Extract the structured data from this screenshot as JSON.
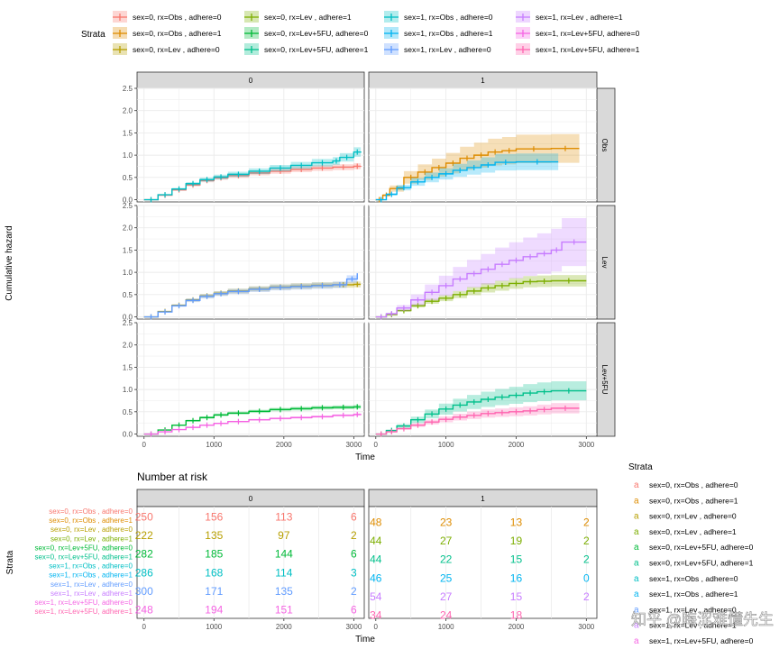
{
  "strata_labels": [
    "sex=0, rx=Obs    , adhere=0",
    "sex=0, rx=Obs    , adhere=1",
    "sex=0, rx=Lev    , adhere=0",
    "sex=0, rx=Lev    , adhere=1",
    "sex=0, rx=Lev+5FU, adhere=0",
    "sex=0, rx=Lev+5FU, adhere=1",
    "sex=1, rx=Obs    , adhere=0",
    "sex=1, rx=Obs    , adhere=1",
    "sex=1, rx=Lev    , adhere=0",
    "sex=1, rx=Lev    , adhere=1",
    "sex=1, rx=Lev+5FU, adhere=0",
    "sex=1, rx=Lev+5FU, adhere=1"
  ],
  "colors": [
    "#F8766D",
    "#DE8C00",
    "#B79F00",
    "#7CAE00",
    "#00BA38",
    "#00C08B",
    "#00BFC4",
    "#00B4F0",
    "#619CFF",
    "#C77CFF",
    "#F564E3",
    "#FF64B0"
  ],
  "legend": {
    "title": "Strata",
    "glyph": "a"
  },
  "facet_cols": [
    "0",
    "1"
  ],
  "facet_rows": [
    "Obs",
    "Lev",
    "Lev+5FU"
  ],
  "chart_data": [
    {
      "type": "line",
      "kind": "step",
      "xlabel": "Time",
      "ylabel": "Cumulative hazard",
      "xlim": [
        -100,
        3150
      ],
      "ylim": [
        -0.05,
        2.5
      ],
      "xticks": [
        0,
        1000,
        2000,
        3000
      ],
      "yticks": [
        0.0,
        0.5,
        1.0,
        1.5,
        2.0,
        2.5
      ],
      "grid": true,
      "legend_position": "top",
      "panels": [
        {
          "row": "Obs",
          "col": "0",
          "series": [
            {
              "stratum": 0,
              "x": [
                0,
                200,
                400,
                600,
                800,
                1000,
                1200,
                1500,
                1800,
                2100,
                2400,
                2700,
                3000,
                3100
              ],
              "y": [
                0,
                0.1,
                0.22,
                0.33,
                0.43,
                0.49,
                0.54,
                0.6,
                0.64,
                0.68,
                0.71,
                0.73,
                0.75,
                0.76
              ],
              "band": 0.09
            },
            {
              "stratum": 6,
              "x": [
                0,
                200,
                400,
                600,
                800,
                1000,
                1200,
                1500,
                1800,
                2100,
                2400,
                2700,
                2800,
                3000,
                3100
              ],
              "y": [
                0,
                0.11,
                0.24,
                0.36,
                0.45,
                0.51,
                0.57,
                0.64,
                0.71,
                0.77,
                0.83,
                0.87,
                0.95,
                1.07,
                1.08
              ],
              "band": 0.1
            }
          ]
        },
        {
          "row": "Obs",
          "col": "1",
          "series": [
            {
              "stratum": 1,
              "x": [
                0,
                100,
                200,
                400,
                600,
                800,
                1000,
                1200,
                1400,
                1600,
                1800,
                2000,
                2500,
                2900
              ],
              "y": [
                0,
                0.1,
                0.25,
                0.5,
                0.62,
                0.72,
                0.82,
                0.93,
                1.0,
                1.07,
                1.1,
                1.14,
                1.15,
                1.15
              ],
              "band": 0.28
            },
            {
              "stratum": 7,
              "x": [
                0,
                150,
                300,
                500,
                700,
                900,
                1100,
                1300,
                1500,
                1700,
                2000,
                2600
              ],
              "y": [
                0,
                0.12,
                0.27,
                0.4,
                0.5,
                0.58,
                0.66,
                0.72,
                0.78,
                0.84,
                0.85,
                0.85
              ],
              "band": 0.22
            }
          ]
        },
        {
          "row": "Lev",
          "col": "0",
          "series": [
            {
              "stratum": 2,
              "x": [
                0,
                200,
                400,
                600,
                800,
                1000,
                1200,
                1500,
                1800,
                2100,
                2400,
                2700,
                3000,
                3100
              ],
              "y": [
                0,
                0.12,
                0.26,
                0.38,
                0.47,
                0.53,
                0.58,
                0.63,
                0.67,
                0.69,
                0.71,
                0.72,
                0.73,
                0.73
              ],
              "band": 0.09
            },
            {
              "stratum": 8,
              "x": [
                0,
                200,
                400,
                600,
                800,
                1000,
                1200,
                1500,
                1800,
                2100,
                2400,
                2700,
                2900,
                3050
              ],
              "y": [
                0,
                0.11,
                0.25,
                0.37,
                0.46,
                0.52,
                0.57,
                0.62,
                0.66,
                0.68,
                0.7,
                0.72,
                0.85,
                0.98
              ],
              "band": 0.1
            }
          ]
        },
        {
          "row": "Lev",
          "col": "1",
          "series": [
            {
              "stratum": 3,
              "x": [
                0,
                150,
                300,
                500,
                700,
                900,
                1100,
                1300,
                1500,
                1700,
                1900,
                2100,
                2300,
                2500,
                3000
              ],
              "y": [
                0,
                0.05,
                0.14,
                0.25,
                0.35,
                0.42,
                0.5,
                0.58,
                0.65,
                0.7,
                0.75,
                0.79,
                0.8,
                0.81,
                0.81
              ],
              "band": 0.16
            },
            {
              "stratum": 9,
              "x": [
                0,
                150,
                300,
                500,
                700,
                900,
                1100,
                1300,
                1500,
                1700,
                1900,
                2100,
                2300,
                2500,
                2650,
                3000
              ],
              "y": [
                0,
                0.07,
                0.2,
                0.38,
                0.55,
                0.7,
                0.85,
                0.97,
                1.07,
                1.18,
                1.27,
                1.35,
                1.42,
                1.5,
                1.68,
                1.68
              ],
              "band": 0.32
            }
          ]
        },
        {
          "row": "Lev+5FU",
          "col": "0",
          "series": [
            {
              "stratum": 4,
              "x": [
                0,
                200,
                400,
                600,
                800,
                1000,
                1200,
                1500,
                1800,
                2100,
                2400,
                2700,
                3000,
                3100
              ],
              "y": [
                0,
                0.09,
                0.2,
                0.3,
                0.37,
                0.43,
                0.47,
                0.51,
                0.55,
                0.57,
                0.59,
                0.6,
                0.61,
                0.61
              ],
              "band": 0.07
            },
            {
              "stratum": 10,
              "x": [
                0,
                200,
                400,
                600,
                800,
                1000,
                1200,
                1500,
                1800,
                2100,
                2400,
                2700,
                3000,
                3100
              ],
              "y": [
                0,
                0.05,
                0.1,
                0.15,
                0.2,
                0.24,
                0.28,
                0.32,
                0.35,
                0.37,
                0.39,
                0.42,
                0.44,
                0.45
              ],
              "band": 0.06
            }
          ]
        },
        {
          "row": "Lev+5FU",
          "col": "1",
          "series": [
            {
              "stratum": 5,
              "x": [
                0,
                150,
                300,
                500,
                700,
                900,
                1100,
                1300,
                1500,
                1700,
                1900,
                2100,
                2300,
                2500,
                3000
              ],
              "y": [
                0,
                0.08,
                0.18,
                0.32,
                0.45,
                0.56,
                0.65,
                0.72,
                0.78,
                0.83,
                0.87,
                0.92,
                0.95,
                0.97,
                0.97
              ],
              "band": 0.22
            },
            {
              "stratum": 11,
              "x": [
                0,
                150,
                300,
                500,
                700,
                900,
                1100,
                1300,
                1500,
                1700,
                1900,
                2100,
                2300,
                2500,
                2900
              ],
              "y": [
                0,
                0.05,
                0.12,
                0.2,
                0.27,
                0.33,
                0.38,
                0.42,
                0.46,
                0.48,
                0.5,
                0.52,
                0.55,
                0.58,
                0.58
              ],
              "band": 0.2
            }
          ]
        }
      ]
    },
    {
      "type": "table",
      "title": "Number at risk",
      "xlabel": "Time",
      "ylabel": "Strata",
      "times": [
        0,
        1000,
        2000,
        3000
      ],
      "xticks": [
        0,
        1000,
        2000,
        3000
      ],
      "panels": [
        {
          "col": "0",
          "rows": [
            {
              "stratum": 0,
              "values": [
                250,
                156,
                113,
                6
              ]
            },
            {
              "stratum": 2,
              "values": [
                222,
                135,
                97,
                2
              ]
            },
            {
              "stratum": 4,
              "values": [
                282,
                185,
                144,
                6
              ]
            },
            {
              "stratum": 6,
              "values": [
                286,
                168,
                114,
                3
              ]
            },
            {
              "stratum": 8,
              "values": [
                300,
                171,
                135,
                2
              ]
            },
            {
              "stratum": 10,
              "values": [
                248,
                194,
                151,
                6
              ]
            }
          ]
        },
        {
          "col": "1",
          "rows": [
            {
              "stratum": 1,
              "values": [
                48,
                23,
                13,
                2
              ]
            },
            {
              "stratum": 3,
              "values": [
                44,
                27,
                19,
                2
              ]
            },
            {
              "stratum": 5,
              "values": [
                44,
                22,
                15,
                2
              ]
            },
            {
              "stratum": 7,
              "values": [
                46,
                25,
                16,
                0
              ]
            },
            {
              "stratum": 9,
              "values": [
                54,
                27,
                15,
                2
              ]
            },
            {
              "stratum": 11,
              "values": [
                34,
                24,
                18,
                ""
              ]
            }
          ]
        }
      ]
    }
  ],
  "watermark": "知乎 @晦涩难懂先生"
}
